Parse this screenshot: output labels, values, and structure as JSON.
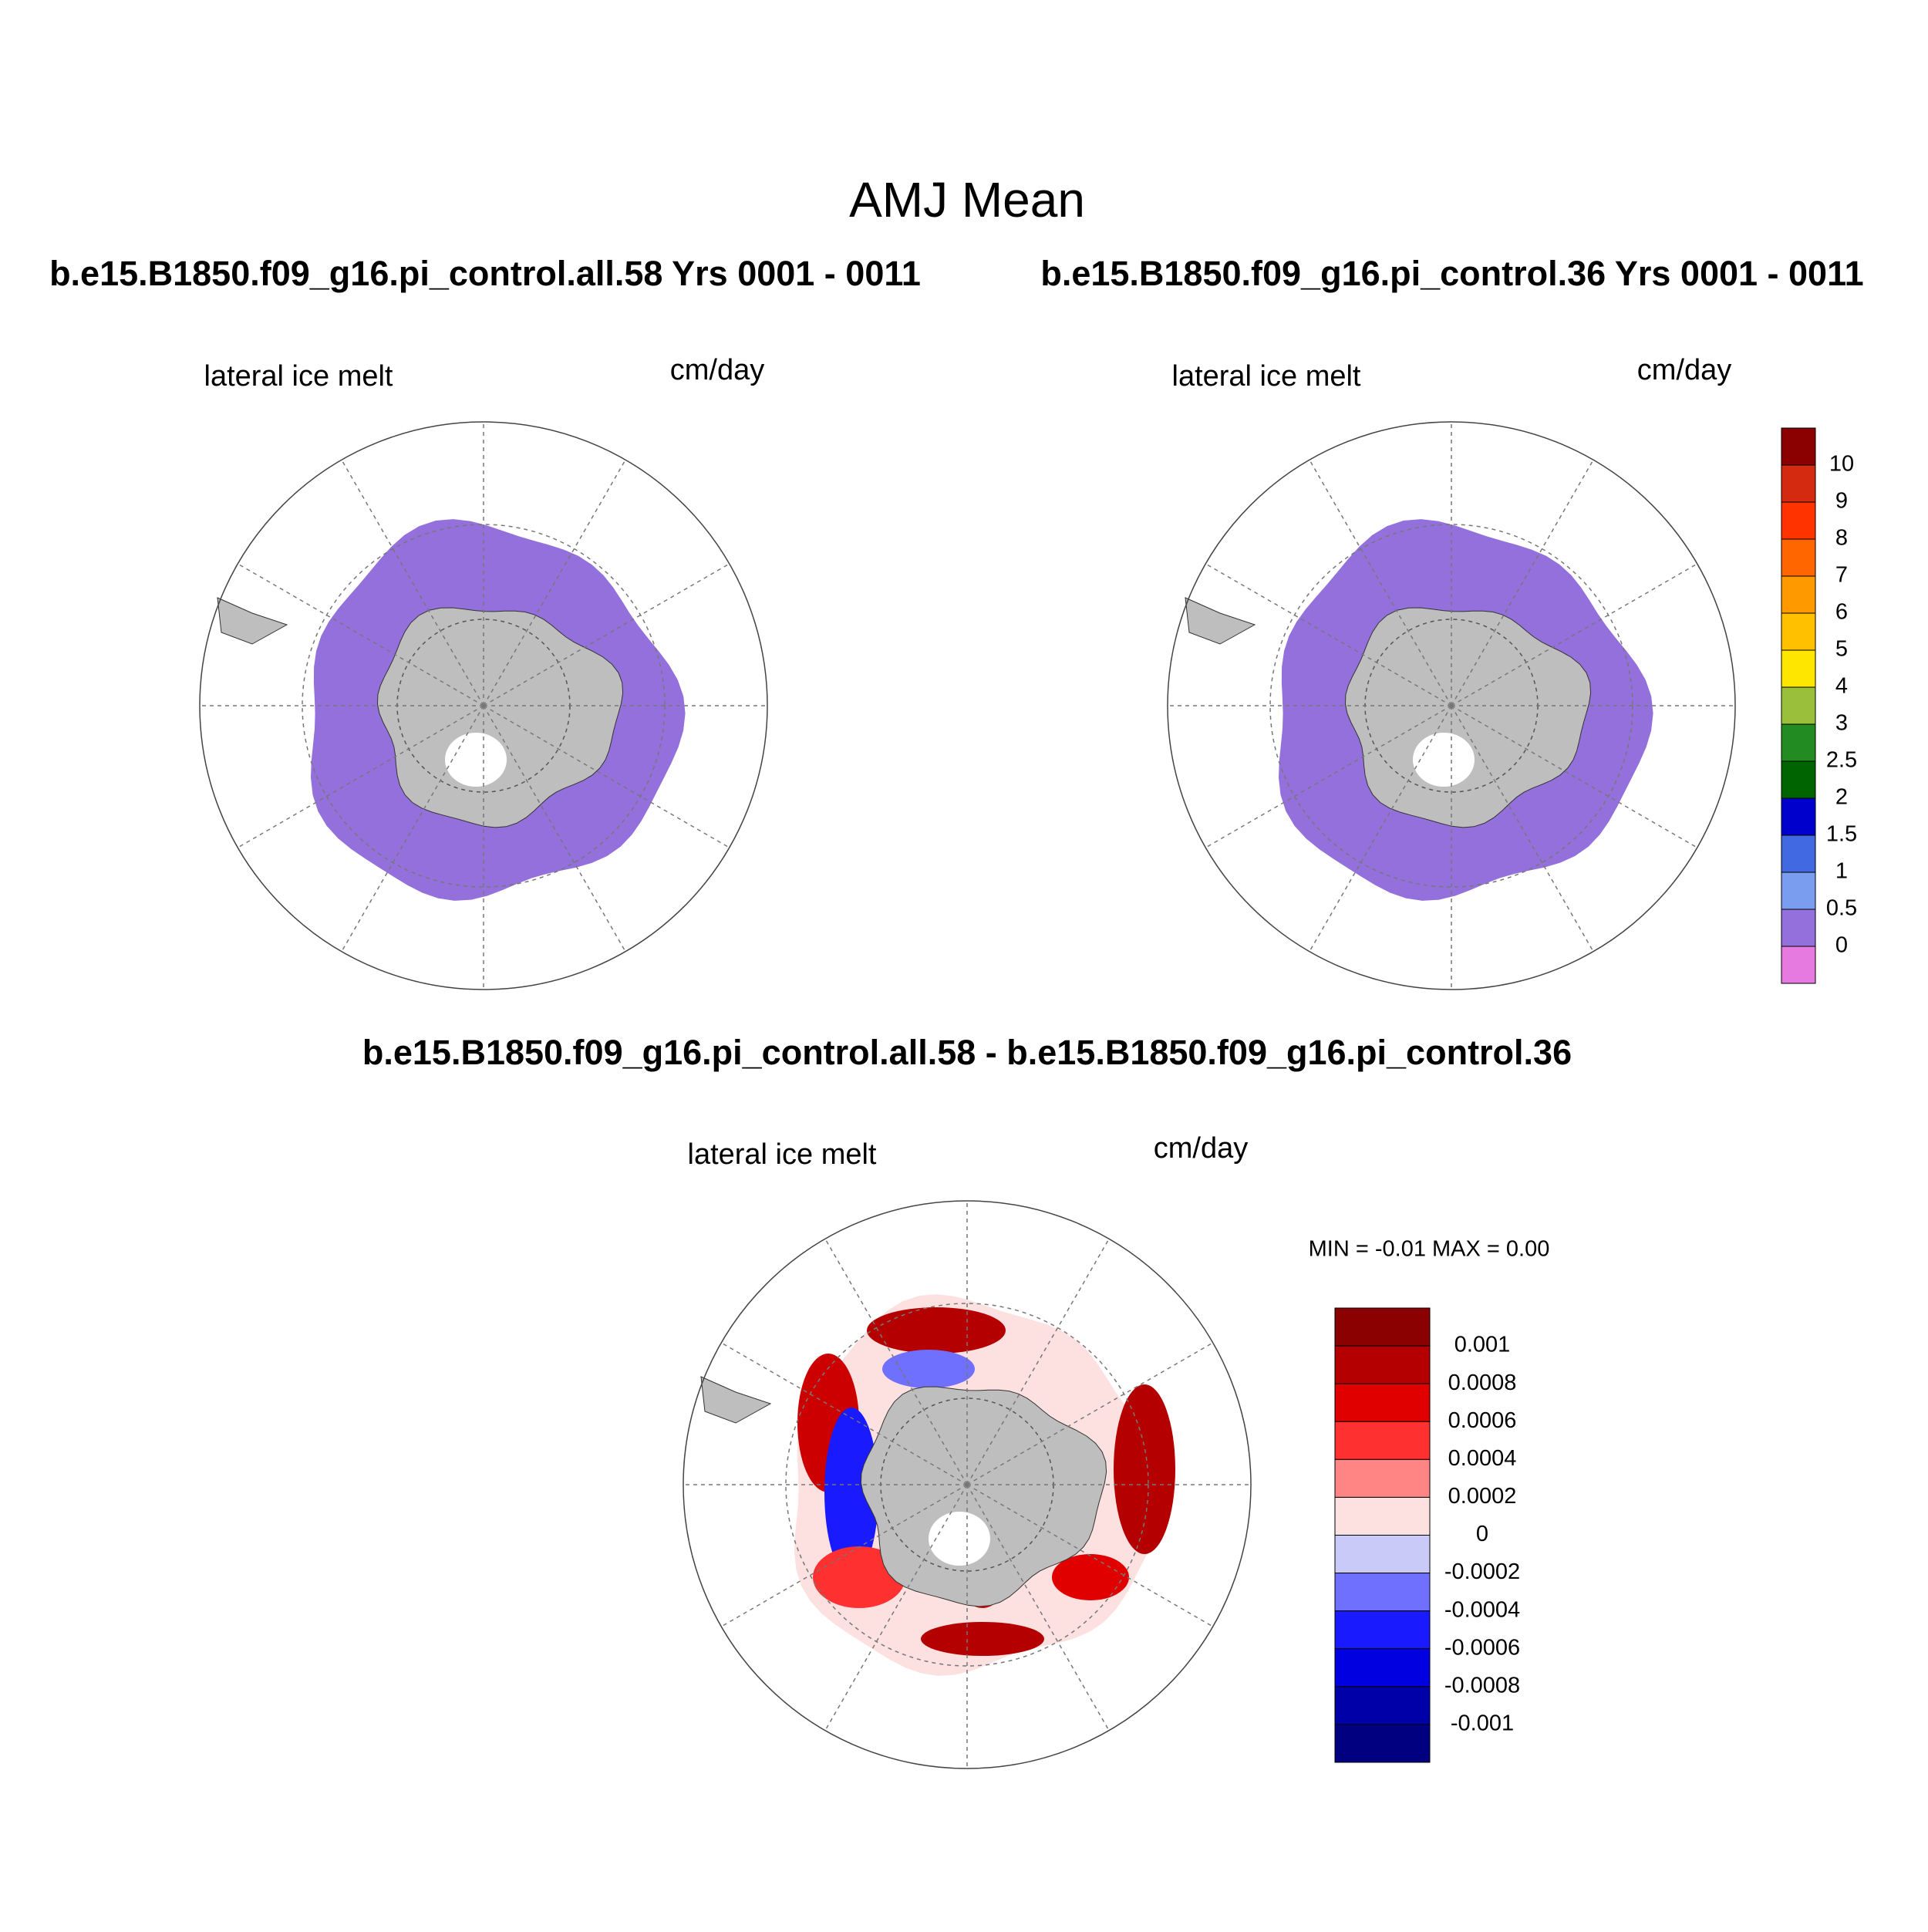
{
  "title": "AMJ Mean",
  "panels": [
    {
      "heading": "b.e15.B1850.f09_g16.pi_control.all.58  Yrs 0001 - 0011",
      "variable": "lateral ice melt",
      "units": "cm/day"
    },
    {
      "heading": "b.e15.B1850.f09_g16.pi_control.36  Yrs 0001 - 0011",
      "variable": "lateral ice melt",
      "units": "cm/day"
    },
    {
      "heading": "b.e15.B1850.f09_g16.pi_control.all.58 - b.e15.B1850.f09_g16.pi_control.36",
      "variable": "lateral ice melt",
      "units": "cm/day",
      "stats": "MIN =  -0.01 MAX =   0.00"
    }
  ],
  "colorbars": [
    {
      "labels": [
        "10",
        "9",
        "8",
        "7",
        "6",
        "5",
        "4",
        "3",
        "2.5",
        "2",
        "1.5",
        "1",
        "0.5",
        "0"
      ],
      "colors": [
        "#8b0000",
        "#d42a10",
        "#ff3300",
        "#ff6600",
        "#ff9900",
        "#ffc000",
        "#ffe600",
        "#9abf3a",
        "#228b22",
        "#006400",
        "#0000cd",
        "#4169e1",
        "#7b9df0",
        "#9370db",
        "#e67ae0"
      ]
    },
    {
      "labels": [
        "0.001",
        "0.0008",
        "0.0006",
        "0.0004",
        "0.0002",
        "0",
        "-0.0002",
        "-0.0004",
        "-0.0006",
        "-0.0008",
        "-0.001"
      ],
      "colors": [
        "#8b0000",
        "#b40000",
        "#e00000",
        "#ff3030",
        "#ff8585",
        "#fde0e0",
        "#cacaf8",
        "#7070ff",
        "#1a1aff",
        "#0000e0",
        "#0000a8",
        "#000080"
      ]
    }
  ]
}
